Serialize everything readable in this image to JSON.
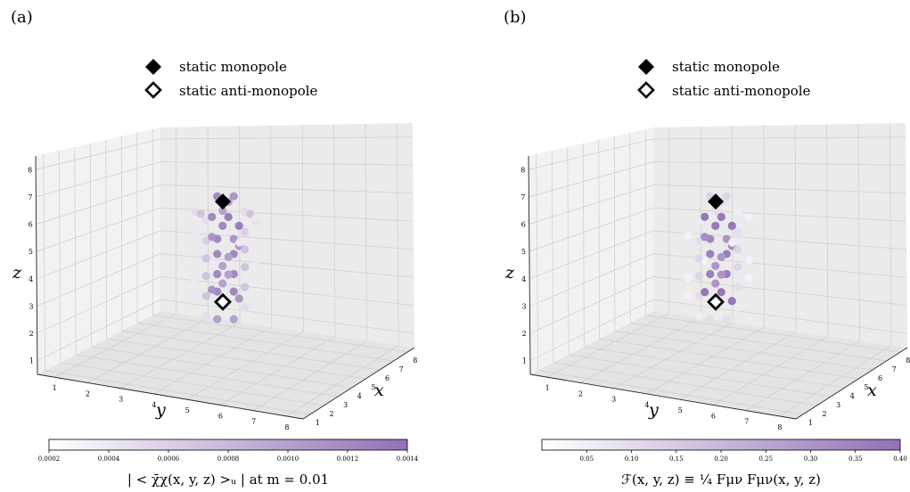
{
  "chart_data": [
    {
      "type": "scatter",
      "panel_label": "(a)",
      "legend": [
        {
          "marker": "filled-diamond",
          "label": "static monopole"
        },
        {
          "marker": "hollow-diamond",
          "label": "static anti-monopole"
        }
      ],
      "xlabel": "x",
      "ylabel": "y",
      "zlabel": "z",
      "x_ticks": [
        "1",
        "2",
        "3",
        "4",
        "5",
        "6",
        "7",
        "8"
      ],
      "y_ticks": [
        "1",
        "2",
        "3",
        "4",
        "5",
        "6",
        "7",
        "8"
      ],
      "z_ticks": [
        "1",
        "2",
        "3",
        "4",
        "5",
        "6",
        "7",
        "8"
      ],
      "xlim": [
        1,
        8
      ],
      "ylim": [
        1,
        8
      ],
      "zlim": [
        1,
        8
      ],
      "grid": true,
      "colorbar": {
        "ticks": [
          "0.0002",
          "0.0004",
          "0.0006",
          "0.0008",
          "0.0010",
          "0.0012",
          "0.0014"
        ],
        "range": [
          0.0002,
          0.0014
        ],
        "label": "| < χ̄χ(x, y, z) >ᵤ | at m = 0.01",
        "color_low": "#ffffff",
        "color_high": "#9171b5"
      },
      "monopole": {
        "x": 4.5,
        "y": 4.5,
        "z": 7
      },
      "anti_monopole": {
        "x": 4.5,
        "y": 4.5,
        "z": 3
      },
      "points": [
        {
          "x": 4,
          "y": 4,
          "z": 7.3,
          "v": 0.0012
        },
        {
          "x": 4,
          "y": 5,
          "z": 7.3,
          "v": 0.0011
        },
        {
          "x": 3,
          "y": 4,
          "z": 6.9,
          "v": 0.001
        },
        {
          "x": 5,
          "y": 5,
          "z": 6.9,
          "v": 0.001
        },
        {
          "x": 3,
          "y": 3,
          "z": 6.5,
          "v": 0.0005
        },
        {
          "x": 5,
          "y": 3,
          "z": 6.5,
          "v": 0.0005
        },
        {
          "x": 3,
          "y": 6,
          "z": 6.5,
          "v": 0.0005
        },
        {
          "x": 5,
          "y": 6,
          "z": 6.5,
          "v": 0.0005
        },
        {
          "x": 4,
          "y": 3,
          "z": 6.6,
          "v": 0.0007
        },
        {
          "x": 4,
          "y": 6,
          "z": 6.6,
          "v": 0.0007
        },
        {
          "x": 3,
          "y": 4,
          "z": 6.3,
          "v": 0.0012
        },
        {
          "x": 3,
          "y": 5,
          "z": 6.3,
          "v": 0.0013
        },
        {
          "x": 5,
          "y": 4,
          "z": 6.3,
          "v": 0.0012
        },
        {
          "x": 5,
          "y": 5,
          "z": 6.3,
          "v": 0.0013
        },
        {
          "x": 2,
          "y": 2,
          "z": 6.1,
          "v": 0.0004
        },
        {
          "x": 6,
          "y": 7,
          "z": 6.1,
          "v": 0.0004
        },
        {
          "x": 3,
          "y": 3,
          "z": 5.7,
          "v": 0.0006
        },
        {
          "x": 5,
          "y": 6,
          "z": 5.7,
          "v": 0.0006
        },
        {
          "x": 4,
          "y": 4,
          "z": 5.6,
          "v": 0.0012
        },
        {
          "x": 4,
          "y": 5,
          "z": 5.6,
          "v": 0.0011
        },
        {
          "x": 3,
          "y": 5,
          "z": 5.5,
          "v": 0.0011
        },
        {
          "x": 5,
          "y": 4,
          "z": 5.5,
          "v": 0.0011
        },
        {
          "x": 2,
          "y": 3,
          "z": 5.1,
          "v": 0.0004
        },
        {
          "x": 6,
          "y": 6,
          "z": 5.1,
          "v": 0.0004
        },
        {
          "x": 3,
          "y": 3,
          "z": 5.0,
          "v": 0.0007
        },
        {
          "x": 5,
          "y": 6,
          "z": 5.0,
          "v": 0.0007
        },
        {
          "x": 4,
          "y": 4,
          "z": 5.0,
          "v": 0.0012
        },
        {
          "x": 4,
          "y": 5,
          "z": 5.0,
          "v": 0.0012
        },
        {
          "x": 3,
          "y": 4,
          "z": 4.7,
          "v": 0.001
        },
        {
          "x": 5,
          "y": 5,
          "z": 4.7,
          "v": 0.001
        },
        {
          "x": 2,
          "y": 2,
          "z": 4.4,
          "v": 0.0004
        },
        {
          "x": 6,
          "y": 7,
          "z": 4.4,
          "v": 0.0004
        },
        {
          "x": 3,
          "y": 3,
          "z": 4.3,
          "v": 0.0007
        },
        {
          "x": 5,
          "y": 6,
          "z": 4.3,
          "v": 0.0007
        },
        {
          "x": 4,
          "y": 4,
          "z": 4.2,
          "v": 0.0012
        },
        {
          "x": 4,
          "y": 5,
          "z": 4.2,
          "v": 0.0012
        },
        {
          "x": 3,
          "y": 4,
          "z": 4.0,
          "v": 0.001
        },
        {
          "x": 5,
          "y": 5,
          "z": 4.0,
          "v": 0.001
        },
        {
          "x": 2,
          "y": 2,
          "z": 3.7,
          "v": 0.0004
        },
        {
          "x": 6,
          "y": 7,
          "z": 3.7,
          "v": 0.0004
        },
        {
          "x": 3,
          "y": 3,
          "z": 3.5,
          "v": 0.0007
        },
        {
          "x": 5,
          "y": 6,
          "z": 3.5,
          "v": 0.0007
        },
        {
          "x": 4,
          "y": 4,
          "z": 3.5,
          "v": 0.0012
        },
        {
          "x": 4,
          "y": 5,
          "z": 3.5,
          "v": 0.0012
        },
        {
          "x": 3,
          "y": 5,
          "z": 3.4,
          "v": 0.0011
        },
        {
          "x": 5,
          "y": 4,
          "z": 3.4,
          "v": 0.0011
        },
        {
          "x": 3,
          "y": 3,
          "z": 2.7,
          "v": 0.0005
        },
        {
          "x": 5,
          "y": 6,
          "z": 2.7,
          "v": 0.0005
        },
        {
          "x": 4,
          "y": 4,
          "z": 2.4,
          "v": 0.001
        },
        {
          "x": 4,
          "y": 5,
          "z": 2.4,
          "v": 0.001
        }
      ]
    },
    {
      "type": "scatter",
      "panel_label": "(b)",
      "legend": [
        {
          "marker": "filled-diamond",
          "label": "static monopole"
        },
        {
          "marker": "hollow-diamond",
          "label": "static anti-monopole"
        }
      ],
      "xlabel": "x",
      "ylabel": "y",
      "zlabel": "z",
      "x_ticks": [
        "1",
        "2",
        "3",
        "4",
        "5",
        "6",
        "7",
        "8"
      ],
      "y_ticks": [
        "1",
        "2",
        "3",
        "4",
        "5",
        "6",
        "7",
        "8"
      ],
      "z_ticks": [
        "1",
        "2",
        "3",
        "4",
        "5",
        "6",
        "7",
        "8"
      ],
      "xlim": [
        1,
        8
      ],
      "ylim": [
        1,
        8
      ],
      "zlim": [
        1,
        8
      ],
      "grid": true,
      "colorbar": {
        "ticks": [
          "0.05",
          "0.10",
          "0.15",
          "0.20",
          "0.25",
          "0.30",
          "0.35",
          "0.40"
        ],
        "range": [
          0.0,
          0.4
        ],
        "label": "ℱ(x, y, z) ≡ ¼ Fμν Fμν(x, y, z)",
        "color_low": "#ffffff",
        "color_high": "#9171b5"
      },
      "monopole": {
        "x": 4.5,
        "y": 4.5,
        "z": 7
      },
      "anti_monopole": {
        "x": 4.5,
        "y": 4.5,
        "z": 3
      },
      "points": [
        {
          "x": 4,
          "y": 4,
          "z": 7.3,
          "v": 0.12
        },
        {
          "x": 4,
          "y": 5,
          "z": 7.3,
          "v": 0.12
        },
        {
          "x": 3,
          "y": 4,
          "z": 6.9,
          "v": 0.1
        },
        {
          "x": 5,
          "y": 5,
          "z": 6.9,
          "v": 0.1
        },
        {
          "x": 3,
          "y": 3,
          "z": 6.5,
          "v": 0.06
        },
        {
          "x": 5,
          "y": 6,
          "z": 6.5,
          "v": 0.06
        },
        {
          "x": 3,
          "y": 4,
          "z": 6.3,
          "v": 0.38
        },
        {
          "x": 3,
          "y": 5,
          "z": 6.3,
          "v": 0.38
        },
        {
          "x": 5,
          "y": 4,
          "z": 6.3,
          "v": 0.38
        },
        {
          "x": 5,
          "y": 5,
          "z": 6.3,
          "v": 0.38
        },
        {
          "x": 2,
          "y": 2,
          "z": 6.1,
          "v": 0.04
        },
        {
          "x": 6,
          "y": 7,
          "z": 6.1,
          "v": 0.04
        },
        {
          "x": 3,
          "y": 3,
          "z": 5.7,
          "v": 0.1
        },
        {
          "x": 5,
          "y": 6,
          "z": 5.7,
          "v": 0.1
        },
        {
          "x": 4,
          "y": 4,
          "z": 5.6,
          "v": 0.34
        },
        {
          "x": 4,
          "y": 5,
          "z": 5.6,
          "v": 0.3
        },
        {
          "x": 3,
          "y": 5,
          "z": 5.5,
          "v": 0.32
        },
        {
          "x": 5,
          "y": 4,
          "z": 5.5,
          "v": 0.32
        },
        {
          "x": 2,
          "y": 3,
          "z": 5.1,
          "v": 0.04
        },
        {
          "x": 6,
          "y": 6,
          "z": 5.1,
          "v": 0.04
        },
        {
          "x": 3,
          "y": 3,
          "z": 5.0,
          "v": 0.12
        },
        {
          "x": 5,
          "y": 6,
          "z": 5.0,
          "v": 0.12
        },
        {
          "x": 4,
          "y": 4,
          "z": 5.0,
          "v": 0.36
        },
        {
          "x": 4,
          "y": 5,
          "z": 5.0,
          "v": 0.36
        },
        {
          "x": 3,
          "y": 4,
          "z": 4.7,
          "v": 0.3
        },
        {
          "x": 5,
          "y": 5,
          "z": 4.7,
          "v": 0.3
        },
        {
          "x": 2,
          "y": 2,
          "z": 4.4,
          "v": 0.04
        },
        {
          "x": 6,
          "y": 7,
          "z": 4.4,
          "v": 0.04
        },
        {
          "x": 3,
          "y": 3,
          "z": 4.3,
          "v": 0.12
        },
        {
          "x": 5,
          "y": 6,
          "z": 4.3,
          "v": 0.12
        },
        {
          "x": 4,
          "y": 4,
          "z": 4.2,
          "v": 0.36
        },
        {
          "x": 4,
          "y": 5,
          "z": 4.2,
          "v": 0.36
        },
        {
          "x": 3,
          "y": 4,
          "z": 4.0,
          "v": 0.3
        },
        {
          "x": 5,
          "y": 5,
          "z": 4.0,
          "v": 0.3
        },
        {
          "x": 2,
          "y": 2,
          "z": 3.7,
          "v": 0.04
        },
        {
          "x": 6,
          "y": 7,
          "z": 3.7,
          "v": 0.04
        },
        {
          "x": 3,
          "y": 3,
          "z": 3.5,
          "v": 0.1
        },
        {
          "x": 5,
          "y": 6,
          "z": 3.5,
          "v": 0.1
        },
        {
          "x": 3,
          "y": 4,
          "z": 3.3,
          "v": 0.38
        },
        {
          "x": 3,
          "y": 5,
          "z": 3.3,
          "v": 0.38
        },
        {
          "x": 5,
          "y": 4,
          "z": 3.3,
          "v": 0.38
        },
        {
          "x": 5,
          "y": 5,
          "z": 3.3,
          "v": 0.38
        },
        {
          "x": 3,
          "y": 3,
          "z": 2.7,
          "v": 0.06
        },
        {
          "x": 5,
          "y": 6,
          "z": 2.7,
          "v": 0.06
        },
        {
          "x": 4,
          "y": 4,
          "z": 2.4,
          "v": 0.1
        },
        {
          "x": 4,
          "y": 5,
          "z": 2.4,
          "v": 0.1
        }
      ]
    }
  ]
}
